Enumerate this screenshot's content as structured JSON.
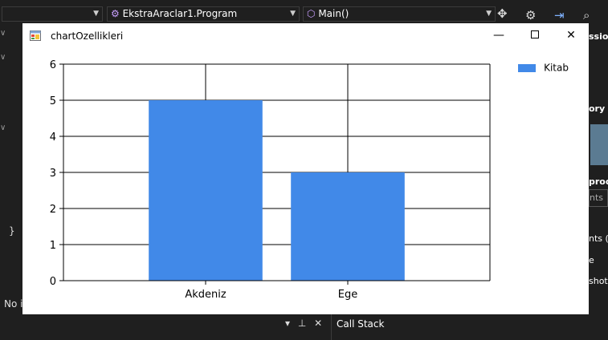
{
  "vs": {
    "class_dropdown": "EkstraAraclar1.Program",
    "member_dropdown": "Main()",
    "status_text": "No i",
    "brace": "}",
    "bottom_panel_title": "Call Stack",
    "right_panel_fragments": [
      "ssio",
      "ory (",
      "proc",
      "nts",
      "nts (",
      "e",
      "shot"
    ]
  },
  "window": {
    "title": "chartOzellikleri"
  },
  "legend": {
    "label": "Kitab"
  },
  "chart_data": {
    "type": "bar",
    "categories": [
      "Akdeniz",
      "Ege"
    ],
    "series": [
      {
        "name": "Kitab",
        "values": [
          5,
          3
        ],
        "color": "#4189e8"
      }
    ],
    "yticks": [
      "0",
      "1",
      "2",
      "3",
      "4",
      "5",
      "6"
    ],
    "ylim": [
      0,
      6
    ],
    "grid": true,
    "legend_position": "top-right"
  }
}
